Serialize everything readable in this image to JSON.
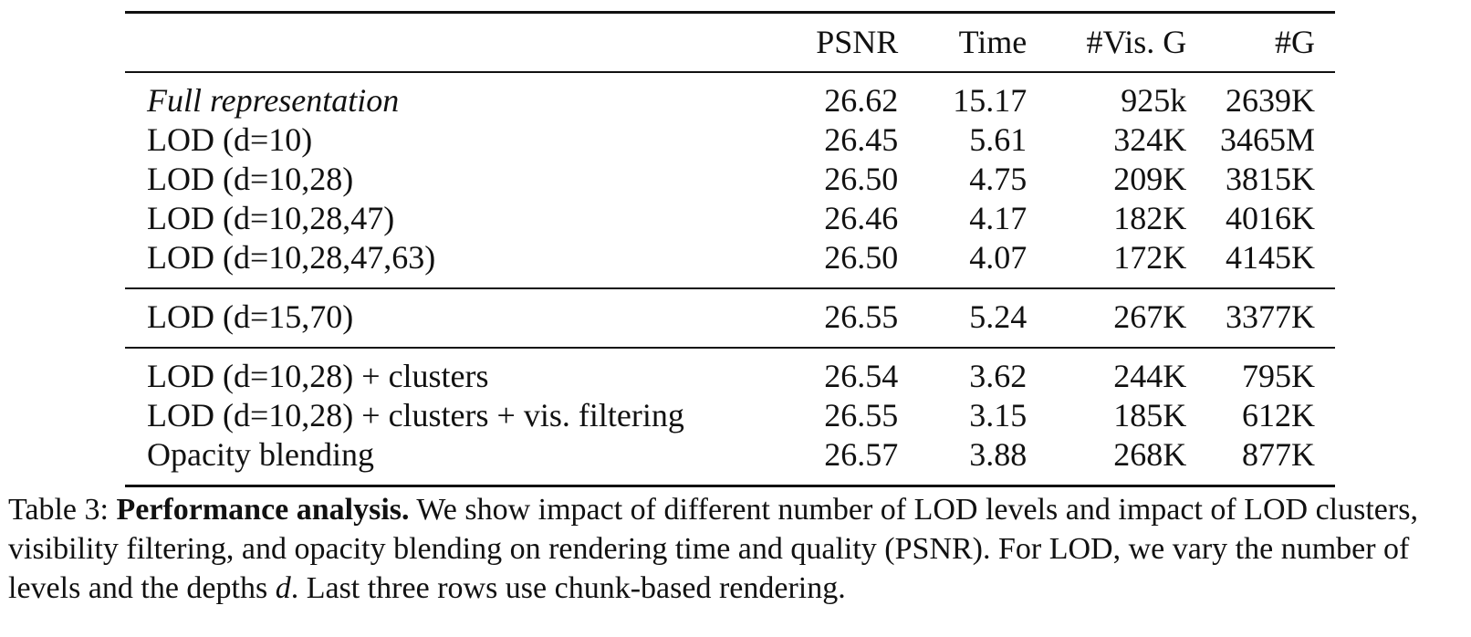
{
  "table": {
    "headers": [
      "",
      "PSNR",
      "Time",
      "#Vis. G",
      "#G"
    ],
    "groups": [
      [
        {
          "label": "Full representation",
          "italic": true,
          "psnr": "26.62",
          "time": "15.17",
          "vis": "925k",
          "g": "2639K"
        },
        {
          "label": "LOD (d=10)",
          "psnr": "26.45",
          "time": "5.61",
          "vis": "324K",
          "g": "3465M"
        },
        {
          "label": "LOD (d=10,28)",
          "psnr": "26.50",
          "time": "4.75",
          "vis": "209K",
          "g": "3815K"
        },
        {
          "label": "LOD (d=10,28,47)",
          "psnr": "26.46",
          "time": "4.17",
          "vis": "182K",
          "g": "4016K"
        },
        {
          "label": "LOD (d=10,28,47,63)",
          "psnr": "26.50",
          "time": "4.07",
          "vis": "172K",
          "g": "4145K"
        }
      ],
      [
        {
          "label": "LOD (d=15,70)",
          "psnr": "26.55",
          "time": "5.24",
          "vis": "267K",
          "g": "3377K"
        }
      ],
      [
        {
          "label": "LOD (d=10,28) + clusters",
          "psnr": "26.54",
          "time": "3.62",
          "vis": "244K",
          "g": "795K"
        },
        {
          "label": "LOD (d=10,28) + clusters + vis. filtering",
          "psnr": "26.55",
          "time": "3.15",
          "vis": "185K",
          "g": "612K"
        },
        {
          "label": "Opacity blending",
          "psnr": "26.57",
          "time": "3.88",
          "vis": "268K",
          "g": "877K"
        }
      ]
    ]
  },
  "caption": {
    "prefix": "Table 3: ",
    "title": "Performance analysis.",
    "body_1": " We show impact of different number of LOD levels and impact of LOD clusters, visibility filtering, and opacity blending on rendering time and quality (PSNR). For LOD, we vary the number of levels and the depths ",
    "var": "d",
    "body_2": ". Last three rows use chunk-based rendering."
  }
}
